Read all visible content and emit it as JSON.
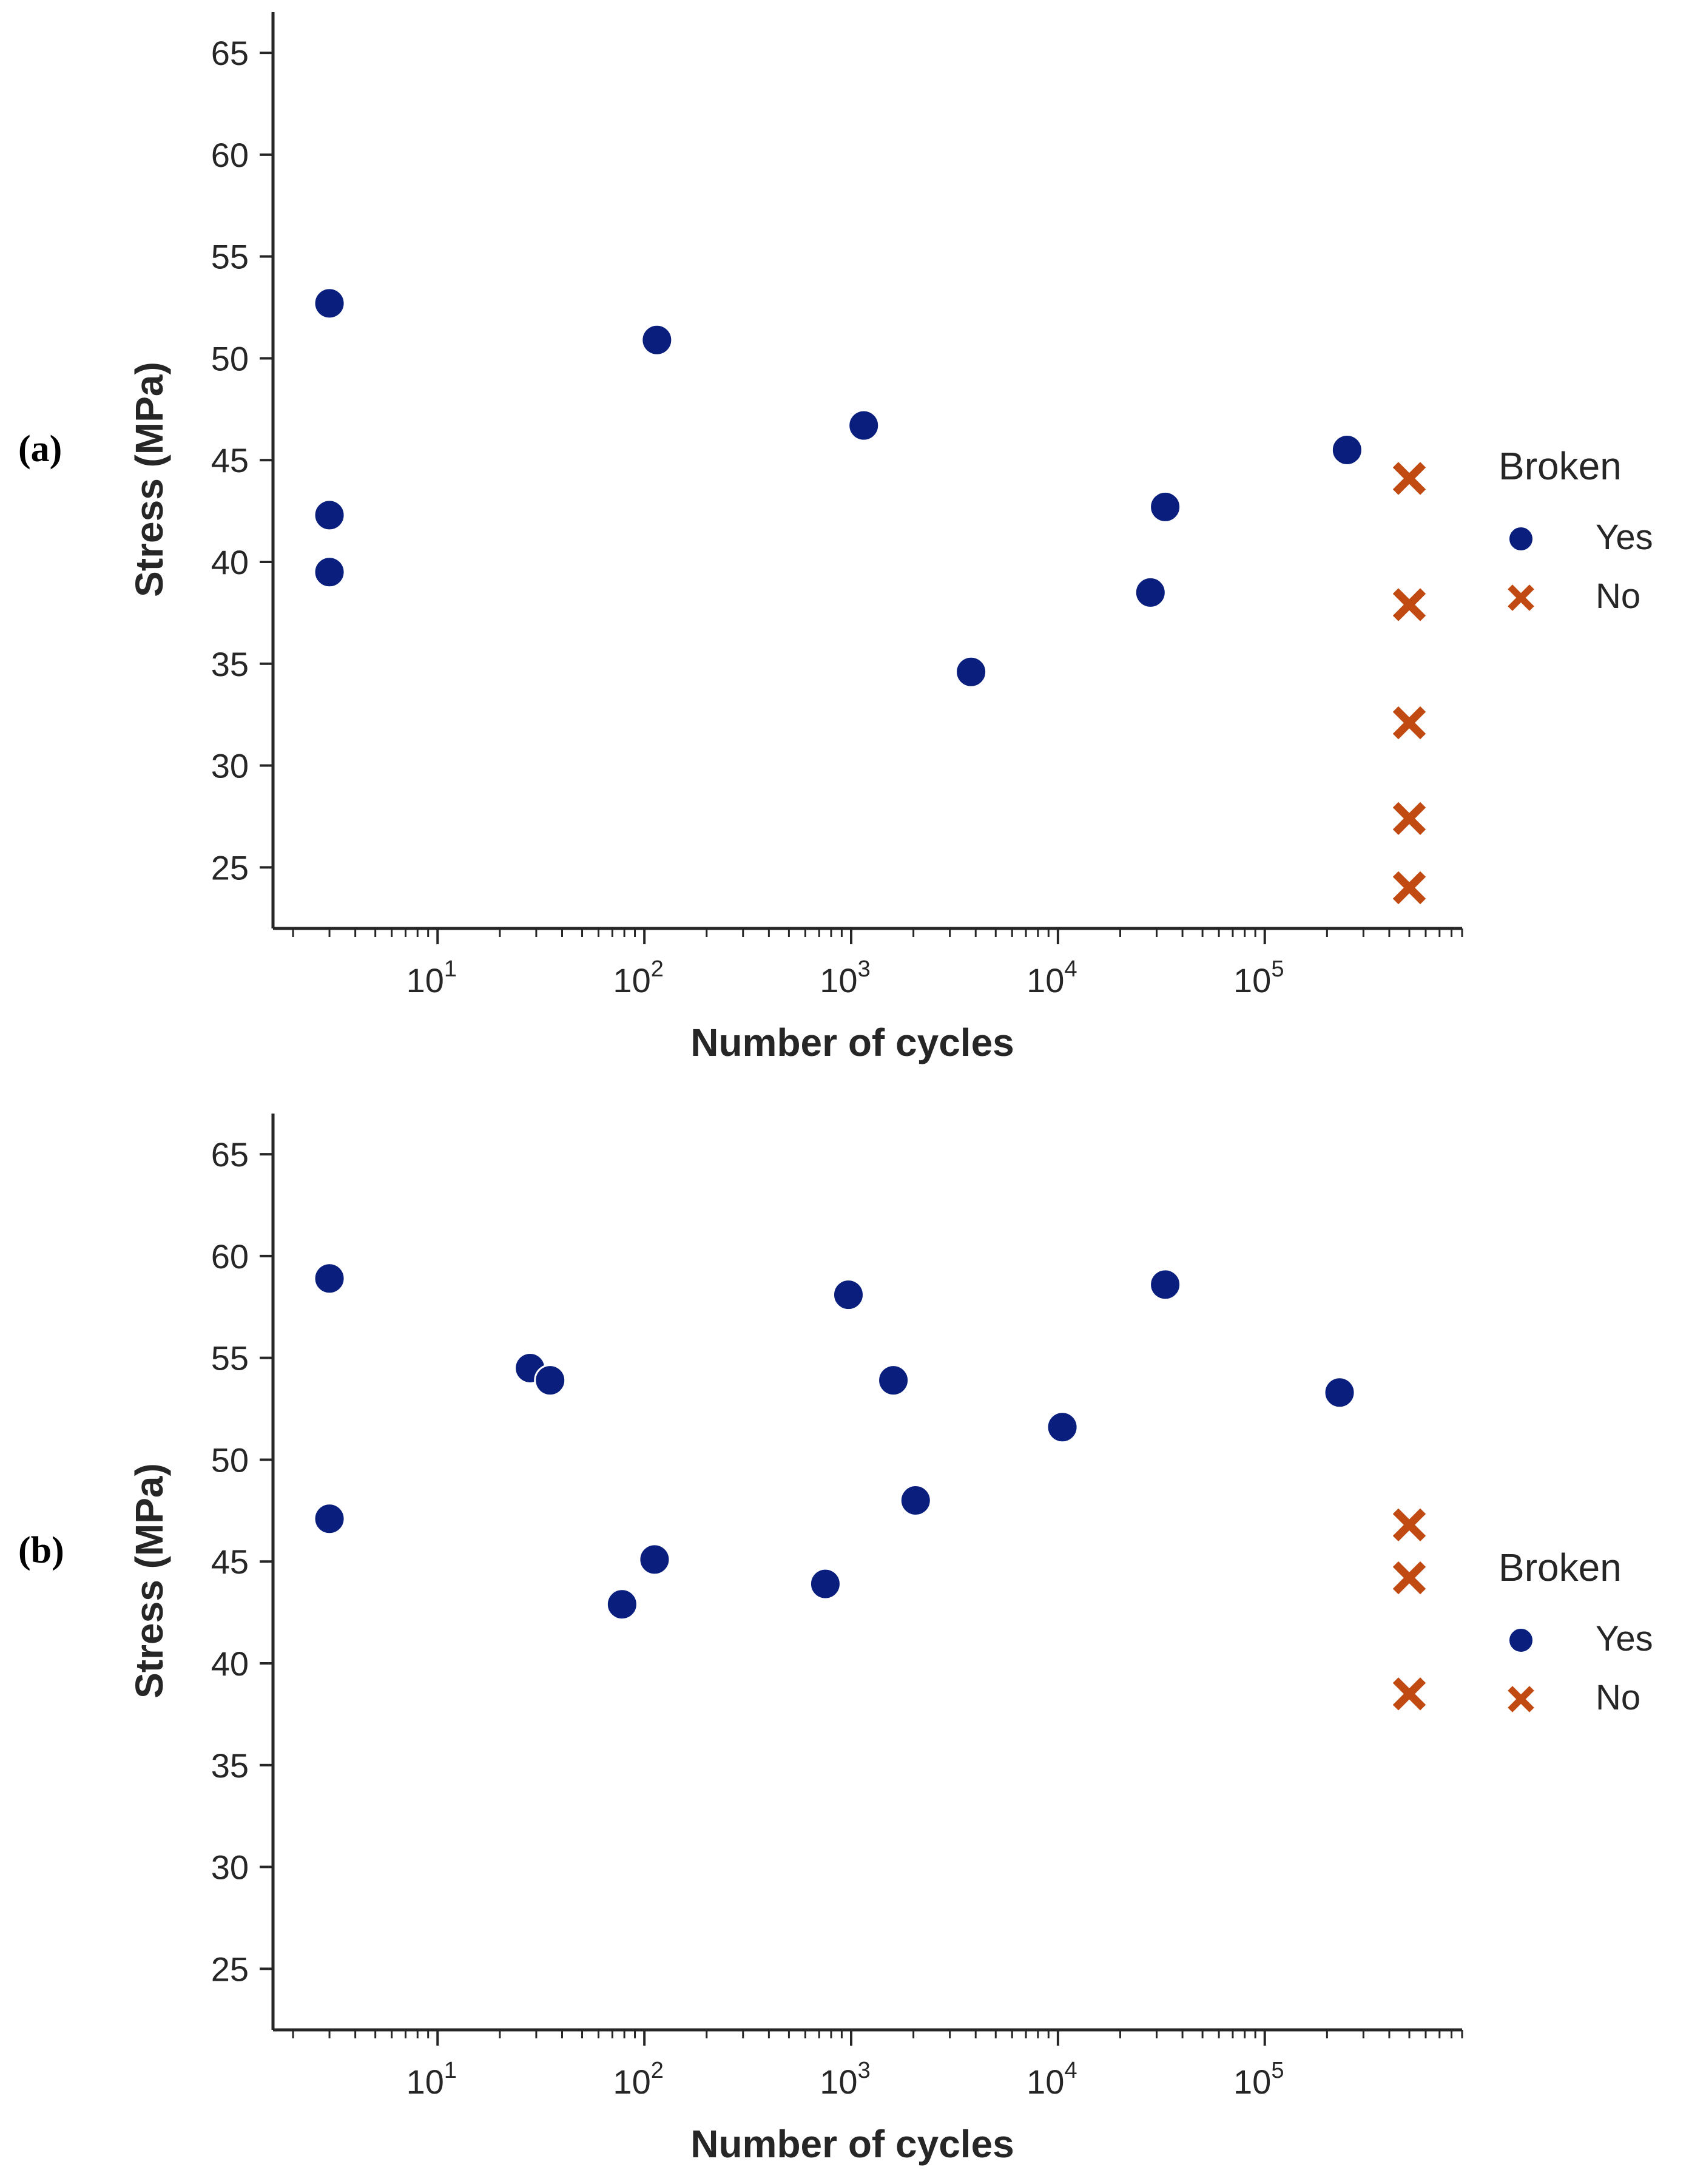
{
  "chart_data": [
    {
      "type": "scatter",
      "panel_label": "(a)",
      "xlabel": "Number of cycles",
      "ylabel": "Stress (MPa)",
      "xscale": "log",
      "xlim": [
        1.6,
        900000
      ],
      "ylim": [
        22,
        67
      ],
      "xticks": [
        {
          "base": "10",
          "exp": "1"
        },
        {
          "base": "10",
          "exp": "2"
        },
        {
          "base": "10",
          "exp": "3"
        },
        {
          "base": "10",
          "exp": "4"
        },
        {
          "base": "10",
          "exp": "5"
        }
      ],
      "yticks": [
        "25",
        "30",
        "35",
        "40",
        "45",
        "50",
        "55",
        "60",
        "65"
      ],
      "legend": {
        "title": "Broken",
        "position": "right",
        "yes_label": "Yes",
        "no_label": "No"
      },
      "series": [
        {
          "name": "Yes",
          "marker": "circle",
          "color": "#0a1f7d",
          "points": [
            [
              3,
              52.7
            ],
            [
              3,
              42.3
            ],
            [
              3,
              39.5
            ],
            [
              115,
              50.9
            ],
            [
              1150,
              46.7
            ],
            [
              3800,
              34.6
            ],
            [
              28000,
              38.5
            ],
            [
              33000,
              42.7
            ],
            [
              250000,
              45.5
            ]
          ]
        },
        {
          "name": "No",
          "marker": "x",
          "color": "#c04a12",
          "points": [
            [
              500000,
              44.1
            ],
            [
              500000,
              37.9
            ],
            [
              500000,
              32.1
            ],
            [
              500000,
              27.4
            ],
            [
              500000,
              24.0
            ]
          ]
        }
      ]
    },
    {
      "type": "scatter",
      "panel_label": "(b)",
      "xlabel": "Number of cycles",
      "ylabel": "Stress (MPa)",
      "xscale": "log",
      "xlim": [
        1.6,
        900000
      ],
      "ylim": [
        22,
        67
      ],
      "xticks": [
        {
          "base": "10",
          "exp": "1"
        },
        {
          "base": "10",
          "exp": "2"
        },
        {
          "base": "10",
          "exp": "3"
        },
        {
          "base": "10",
          "exp": "4"
        },
        {
          "base": "10",
          "exp": "5"
        }
      ],
      "yticks": [
        "25",
        "30",
        "35",
        "40",
        "45",
        "50",
        "55",
        "60",
        "65"
      ],
      "legend": {
        "title": "Broken",
        "position": "right",
        "yes_label": "Yes",
        "no_label": "No"
      },
      "series": [
        {
          "name": "Yes",
          "marker": "circle",
          "color": "#0a1f7d",
          "points": [
            [
              3,
              58.9
            ],
            [
              3,
              47.1
            ],
            [
              28,
              54.5
            ],
            [
              35,
              53.9
            ],
            [
              78,
              42.9
            ],
            [
              112,
              45.1
            ],
            [
              750,
              43.9
            ],
            [
              970,
              58.1
            ],
            [
              1600,
              53.9
            ],
            [
              2050,
              48.0
            ],
            [
              10500,
              51.6
            ],
            [
              33000,
              58.6
            ],
            [
              230000,
              53.3
            ]
          ]
        },
        {
          "name": "No",
          "marker": "x",
          "color": "#c04a12",
          "points": [
            [
              500000,
              46.8
            ],
            [
              500000,
              44.2
            ],
            [
              500000,
              38.5
            ]
          ]
        }
      ]
    }
  ]
}
